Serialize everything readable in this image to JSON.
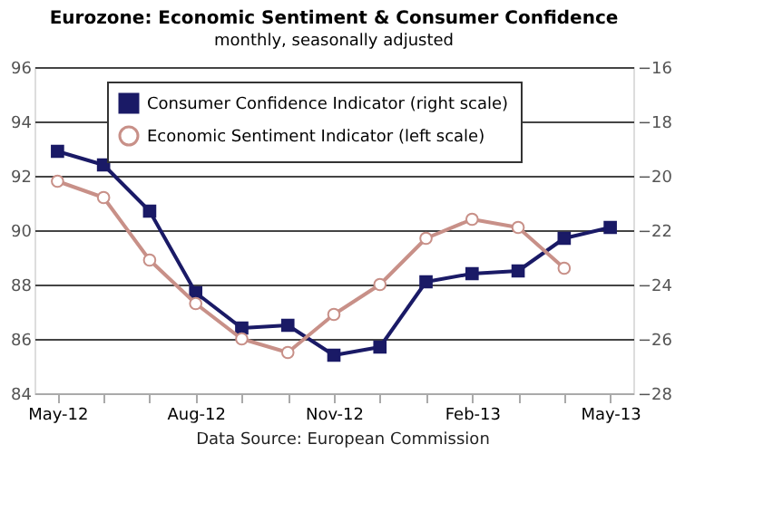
{
  "chart_data": {
    "type": "line",
    "title": "Eurozone: Economic Sentiment & Consumer Confidence",
    "subtitle": "monthly, seasonally adjusted",
    "categories": [
      "May-12",
      null,
      null,
      "Aug-12",
      null,
      null,
      "Nov-12",
      null,
      null,
      "Feb-13",
      null,
      null,
      "May-13"
    ],
    "series": [
      {
        "name": "Consumer Confidence Indicator (right scale)",
        "color": "#1a1a66",
        "marker": "square",
        "axis": "y2",
        "values": [
          -19.1,
          -19.6,
          -21.3,
          -24.3,
          -25.6,
          -25.5,
          -26.6,
          -26.3,
          -23.9,
          -23.6,
          -23.5,
          -22.3,
          -21.9
        ]
      },
      {
        "name": "Economic Sentiment Indicator (left scale)",
        "color": "#c89088",
        "marker": "circle",
        "values": [
          91.8,
          91.2,
          88.9,
          87.3,
          86.0,
          85.5,
          86.9,
          88.0,
          89.7,
          90.4,
          90.1,
          88.6,
          null
        ]
      }
    ],
    "ylim": [
      84,
      96
    ],
    "yticks": [
      84,
      86,
      88,
      90,
      92,
      94,
      96
    ],
    "y2lim": [
      -28,
      -16
    ],
    "y2ticks": [
      -28,
      -26,
      -24,
      -22,
      -20,
      -18,
      -16
    ],
    "grid": "y",
    "legend": "top",
    "annotations": [
      "Data Source: European Commission"
    ]
  }
}
